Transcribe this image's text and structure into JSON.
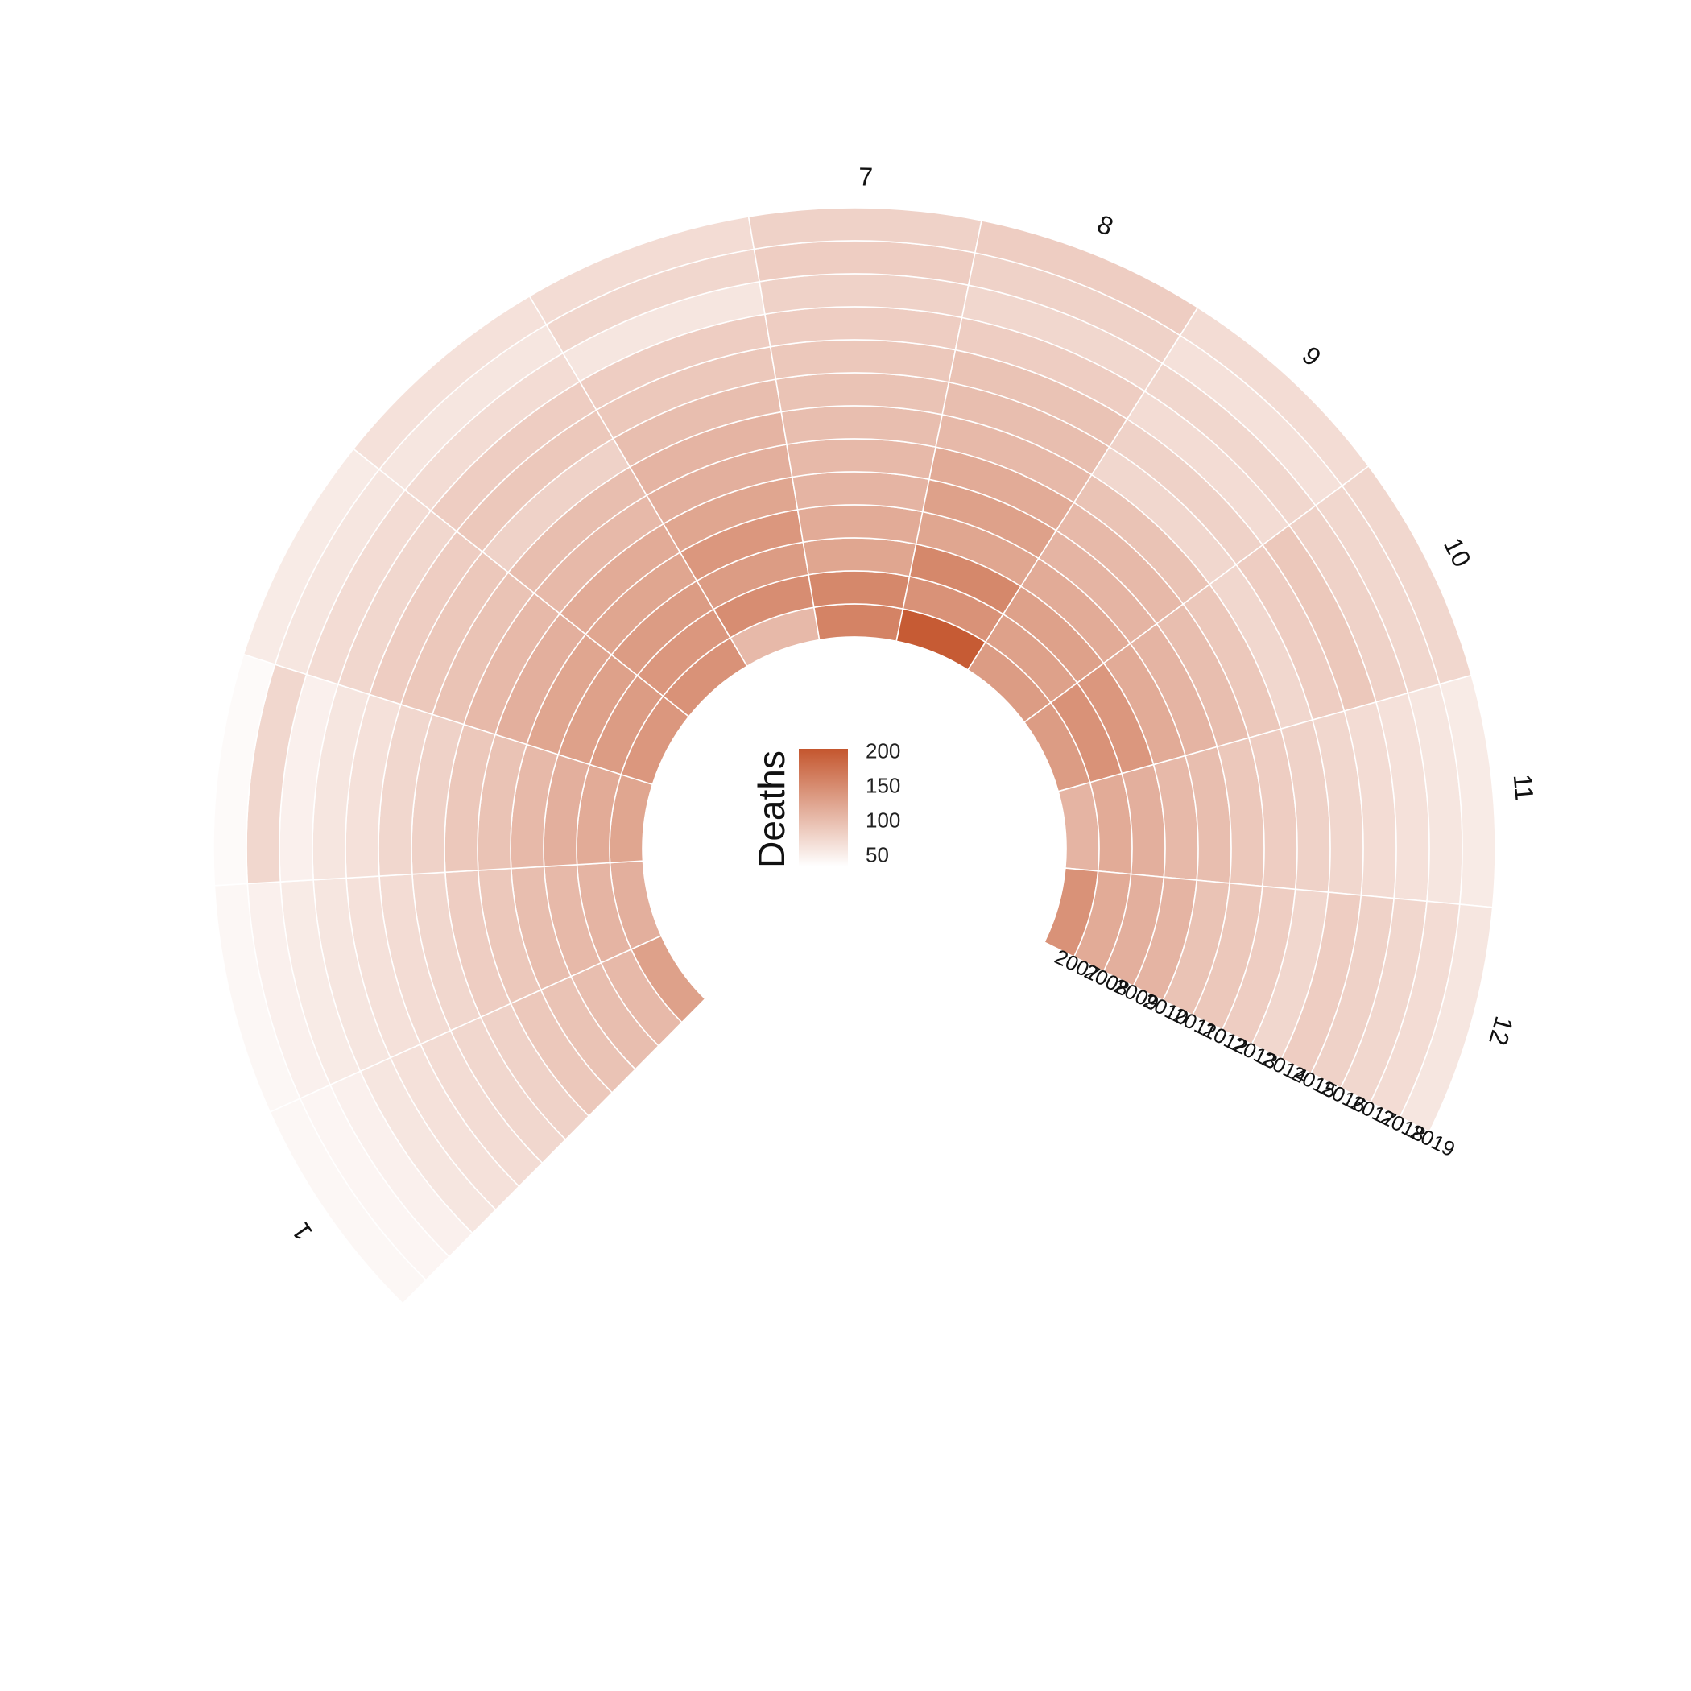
{
  "chart_data": {
    "type": "radial-heatmap",
    "title": "",
    "angle_variable": "month",
    "radius_variable": "year",
    "months": [
      "1",
      "2",
      "3",
      "4",
      "5",
      "6",
      "7",
      "8",
      "9",
      "10",
      "11",
      "12"
    ],
    "visible_month_labels": [
      "1",
      "7",
      "8",
      "9",
      "10",
      "11",
      "12"
    ],
    "years": [
      "2007",
      "2008",
      "2009",
      "2010",
      "2011",
      "2012",
      "2013",
      "2014",
      "2015",
      "2016",
      "2017",
      "2018",
      "2019"
    ],
    "values": {
      "1": [
        135,
        110,
        105,
        100,
        95,
        85,
        80,
        75,
        70,
        65,
        55,
        50,
        48
      ],
      "2": [
        120,
        115,
        110,
        105,
        95,
        90,
        80,
        75,
        70,
        65,
        60,
        55,
        48
      ],
      "3": [
        130,
        125,
        120,
        110,
        100,
        95,
        85,
        80,
        70,
        65,
        55,
        80,
        45
      ],
      "4": [
        145,
        140,
        135,
        130,
        120,
        110,
        100,
        95,
        90,
        80,
        75,
        65,
        60
      ],
      "5": [
        150,
        145,
        140,
        130,
        125,
        110,
        105,
        85,
        95,
        90,
        75,
        65,
        70
      ],
      "6": [
        110,
        155,
        140,
        145,
        130,
        120,
        115,
        105,
        95,
        90,
        65,
        80,
        75
      ],
      "7": [
        165,
        160,
        130,
        125,
        115,
        110,
        105,
        100,
        95,
        90,
        85,
        90,
        85
      ],
      "8": [
        205,
        150,
        160,
        130,
        135,
        125,
        110,
        105,
        100,
        90,
        80,
        85,
        90
      ],
      "9": [
        140,
        135,
        135,
        125,
        115,
        110,
        100,
        80,
        85,
        75,
        80,
        70,
        75
      ],
      "10": [
        140,
        150,
        145,
        125,
        115,
        105,
        95,
        80,
        90,
        95,
        85,
        80,
        80
      ],
      "11": [
        115,
        125,
        120,
        110,
        105,
        95,
        90,
        85,
        80,
        75,
        70,
        65,
        60
      ],
      "12": [
        150,
        125,
        120,
        115,
        100,
        95,
        90,
        80,
        90,
        85,
        80,
        75,
        65
      ]
    },
    "color_scale": {
      "low": "#ffffff",
      "high": "#c4562e",
      "min": 40,
      "max": 210
    },
    "legend": {
      "title": "Deaths",
      "ticks": [
        200,
        150,
        100,
        50
      ]
    },
    "colors": {
      "high": "#c4562e",
      "low": "#ffffff"
    }
  }
}
